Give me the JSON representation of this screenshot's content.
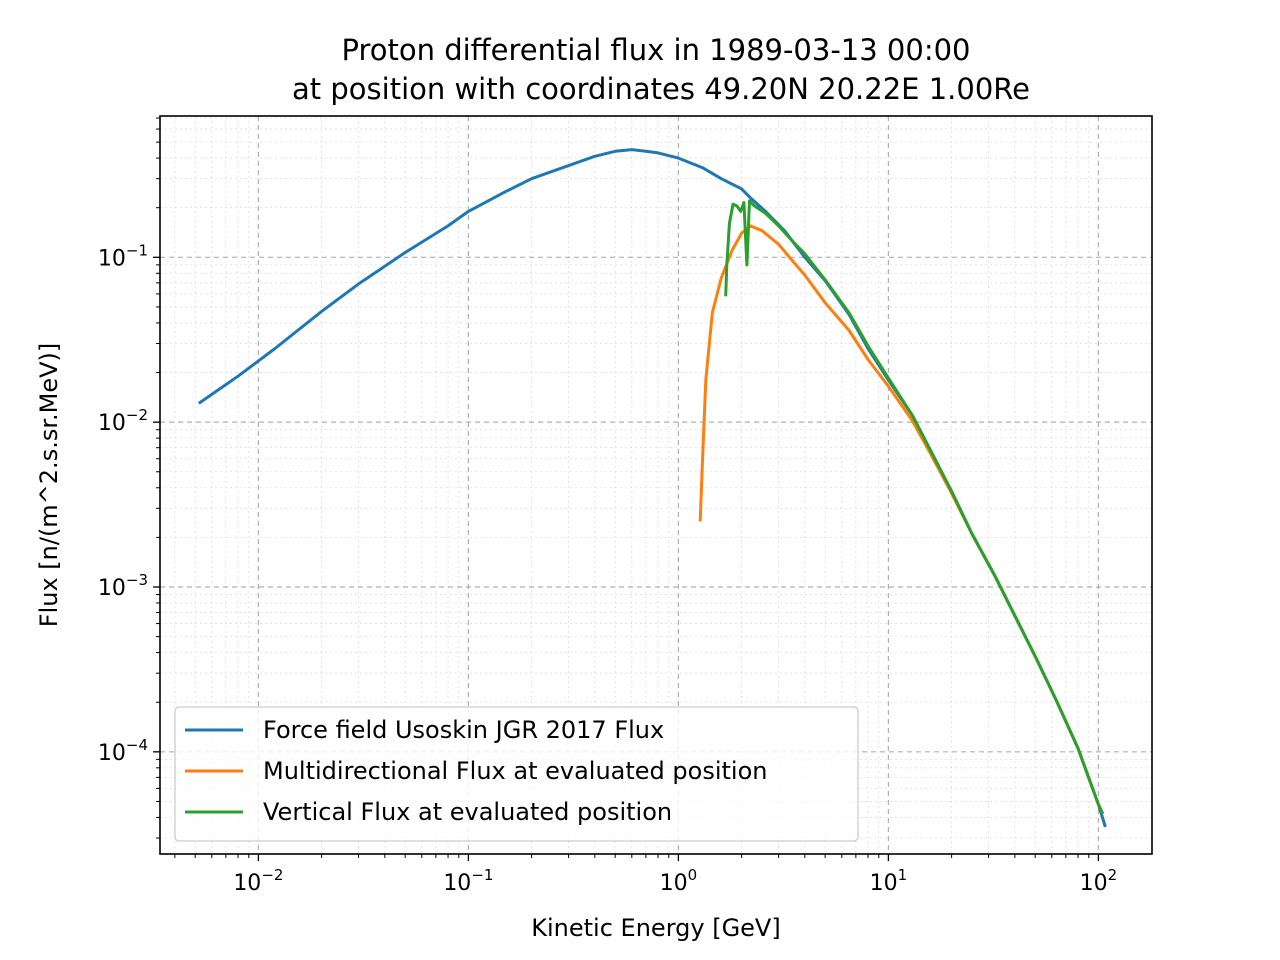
{
  "chart_data": {
    "type": "line",
    "title": "Proton differential flux in 1989-03-13 00:00\nat position with coordinates 49.20N 20.22E 1.00Re",
    "xlabel": "Kinetic Energy [GeV]",
    "ylabel": "Flux [n/(m^2.s.sr.MeV)]",
    "xscale": "log",
    "yscale": "log",
    "xlim": [
      0.0034,
      180
    ],
    "ylim": [
      2.4e-05,
      0.72
    ],
    "grid": true,
    "legend_position": "lower-left",
    "x_ticks": [
      {
        "value": 0.01,
        "base": "10",
        "exp": "−2"
      },
      {
        "value": 0.1,
        "base": "10",
        "exp": "−1"
      },
      {
        "value": 1,
        "base": "10",
        "exp": "0"
      },
      {
        "value": 10,
        "base": "10",
        "exp": "1"
      },
      {
        "value": 100,
        "base": "10",
        "exp": "2"
      }
    ],
    "y_ticks": [
      {
        "value": 0.0001,
        "base": "10",
        "exp": "−4"
      },
      {
        "value": 0.001,
        "base": "10",
        "exp": "−3"
      },
      {
        "value": 0.01,
        "base": "10",
        "exp": "−2"
      },
      {
        "value": 0.1,
        "base": "10",
        "exp": "−1"
      }
    ],
    "series": [
      {
        "name": "Force field Usoskin JGR 2017 Flux",
        "color": "#1f77b4",
        "points": [
          [
            0.0052,
            0.013
          ],
          [
            0.008,
            0.019
          ],
          [
            0.012,
            0.028
          ],
          [
            0.02,
            0.047
          ],
          [
            0.03,
            0.069
          ],
          [
            0.05,
            0.107
          ],
          [
            0.08,
            0.155
          ],
          [
            0.1,
            0.19
          ],
          [
            0.15,
            0.25
          ],
          [
            0.2,
            0.3
          ],
          [
            0.3,
            0.36
          ],
          [
            0.4,
            0.41
          ],
          [
            0.5,
            0.44
          ],
          [
            0.6,
            0.45
          ],
          [
            0.7,
            0.44
          ],
          [
            0.8,
            0.43
          ],
          [
            1.0,
            0.4
          ],
          [
            1.3,
            0.35
          ],
          [
            1.6,
            0.3
          ],
          [
            2.0,
            0.26
          ],
          [
            2.2,
            0.23
          ],
          [
            2.6,
            0.19
          ],
          [
            3.2,
            0.145
          ],
          [
            4.0,
            0.1
          ],
          [
            5.0,
            0.072
          ],
          [
            6.5,
            0.045
          ],
          [
            8.0,
            0.028
          ],
          [
            10,
            0.018
          ],
          [
            13,
            0.011
          ],
          [
            16,
            0.0066
          ],
          [
            20,
            0.0038
          ],
          [
            25,
            0.0021
          ],
          [
            32,
            0.00118
          ],
          [
            40,
            0.00067
          ],
          [
            50,
            0.00038
          ],
          [
            63,
            0.000205
          ],
          [
            80,
            0.000105
          ],
          [
            100,
            4.8e-05
          ],
          [
            108,
            3.5e-05
          ]
        ]
      },
      {
        "name": "Multidirectional Flux at evaluated position",
        "color": "#ff7f0e",
        "points": [
          [
            1.27,
            0.0025
          ],
          [
            1.3,
            0.0055
          ],
          [
            1.35,
            0.018
          ],
          [
            1.45,
            0.046
          ],
          [
            1.6,
            0.075
          ],
          [
            1.8,
            0.11
          ],
          [
            2.0,
            0.14
          ],
          [
            2.2,
            0.155
          ],
          [
            2.5,
            0.145
          ],
          [
            3.0,
            0.12
          ],
          [
            3.5,
            0.095
          ],
          [
            4.0,
            0.078
          ],
          [
            5.0,
            0.053
          ],
          [
            6.5,
            0.036
          ],
          [
            8.0,
            0.024
          ],
          [
            10,
            0.0165
          ],
          [
            13,
            0.0102
          ],
          [
            16,
            0.0063
          ],
          [
            20,
            0.0037
          ],
          [
            25,
            0.0021
          ],
          [
            32,
            0.00118
          ],
          [
            40,
            0.00067
          ],
          [
            50,
            0.00038
          ],
          [
            63,
            0.000205
          ],
          [
            80,
            0.000105
          ],
          [
            100,
            4.8e-05
          ],
          [
            105,
            4.2e-05
          ]
        ]
      },
      {
        "name": "Vertical Flux at evaluated position",
        "color": "#2ca02c",
        "points": [
          [
            1.68,
            0.058
          ],
          [
            1.7,
            0.09
          ],
          [
            1.75,
            0.16
          ],
          [
            1.82,
            0.21
          ],
          [
            1.9,
            0.205
          ],
          [
            1.98,
            0.19
          ],
          [
            2.05,
            0.215
          ],
          [
            2.12,
            0.09
          ],
          [
            2.18,
            0.22
          ],
          [
            2.3,
            0.205
          ],
          [
            2.6,
            0.185
          ],
          [
            3.0,
            0.155
          ],
          [
            3.5,
            0.125
          ],
          [
            4.0,
            0.105
          ],
          [
            5.0,
            0.073
          ],
          [
            6.5,
            0.046
          ],
          [
            8.0,
            0.029
          ],
          [
            10,
            0.0185
          ],
          [
            13,
            0.011
          ],
          [
            16,
            0.0066
          ],
          [
            20,
            0.0038
          ],
          [
            25,
            0.0021
          ],
          [
            32,
            0.00118
          ],
          [
            40,
            0.00067
          ],
          [
            50,
            0.00038
          ],
          [
            63,
            0.000205
          ],
          [
            80,
            0.000105
          ],
          [
            100,
            4.8e-05
          ],
          [
            105,
            4.2e-05
          ]
        ]
      }
    ]
  }
}
